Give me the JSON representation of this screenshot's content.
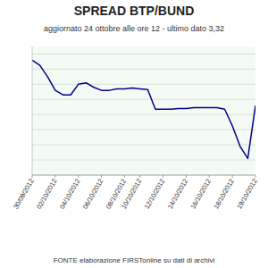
{
  "chart_data": {
    "type": "line",
    "title": "SPREAD  BTP/BUND",
    "subtitle": "aggiornato 24 ottobre alle ore 12 - ultimo dato 3,32",
    "footer": "FONTE elaborazione FIRSTonline su dati di archivi",
    "categories": [
      "30/09/2012",
      null,
      null,
      "02/10/2012",
      null,
      null,
      "04/10/2012",
      null,
      null,
      "06/10/2012",
      null,
      null,
      "08/10/2012",
      null,
      "10/10/2012",
      null,
      null,
      "12/10/2012",
      null,
      null,
      "14/10/2012",
      null,
      null,
      "16/10/2012",
      null,
      null,
      "18/10/2012",
      null,
      null,
      "19/10/2012"
    ],
    "values": [
      3.92,
      3.85,
      3.7,
      3.52,
      3.46,
      3.46,
      3.6,
      3.62,
      3.56,
      3.52,
      3.52,
      3.54,
      3.54,
      3.55,
      3.54,
      3.53,
      3.27,
      3.27,
      3.27,
      3.28,
      3.28,
      3.29,
      3.29,
      3.29,
      3.29,
      3.27,
      3.05,
      2.78,
      2.62,
      3.32
    ],
    "color": "#00008B",
    "ylim": [
      2.4,
      4.1
    ],
    "yticks": [
      2.6,
      2.8,
      3.0,
      3.2,
      3.4,
      3.6,
      3.8,
      4.0
    ],
    "grid": true,
    "tick_labels": "x"
  }
}
